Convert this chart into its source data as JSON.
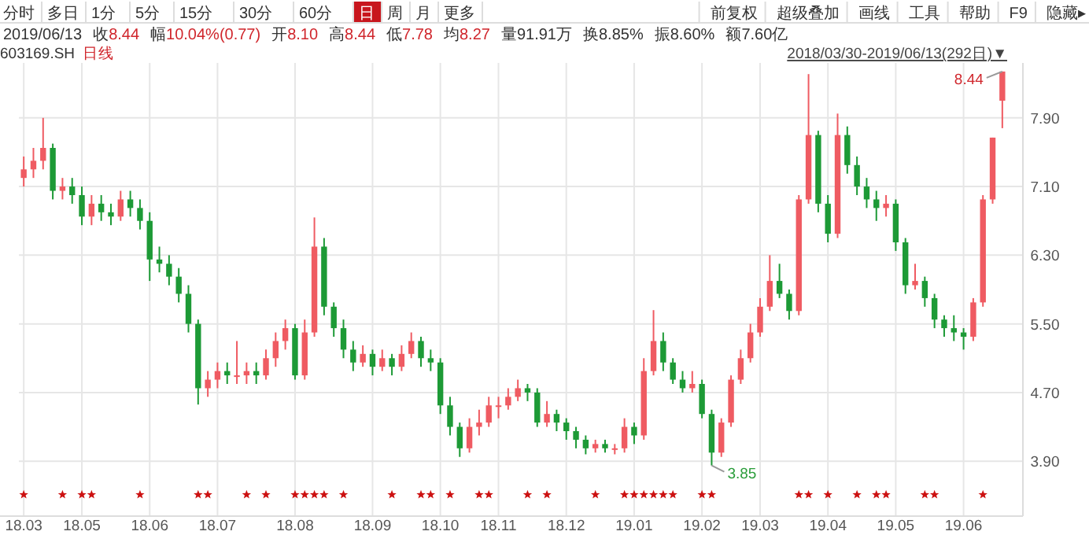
{
  "chart_data": {
    "type": "candlestick",
    "title": "603169.SH",
    "subtitle": "日线",
    "annotations": [
      "分时",
      "多日",
      "1分",
      "5分",
      "15分",
      "30分",
      "60分",
      "日",
      "周",
      "月",
      "更多",
      "前复权",
      "超级叠加",
      "画线",
      "工具",
      "帮助",
      "F9",
      "隐藏▸",
      "2019/06/13",
      "收8.44",
      "幅10.04%(0.77)",
      "开8.10",
      "高8.44",
      "低7.78",
      "均8.27",
      "量91.91万",
      "换8.85%",
      "振8.60%",
      "额7.60亿",
      "2018/03/30-2019/06/13(292日)▼",
      "8.44",
      "3.85"
    ],
    "categories": [
      "18.03",
      null,
      null,
      null,
      null,
      null,
      "18.05",
      null,
      null,
      null,
      null,
      null,
      null,
      "18.06",
      null,
      null,
      null,
      null,
      null,
      null,
      "18.07",
      null,
      null,
      null,
      null,
      null,
      null,
      null,
      "18.08",
      null,
      null,
      null,
      null,
      null,
      null,
      null,
      "18.09",
      null,
      null,
      null,
      null,
      null,
      null,
      "18.10",
      null,
      null,
      null,
      null,
      null,
      "18.11",
      null,
      null,
      null,
      null,
      null,
      null,
      "18.12",
      null,
      null,
      null,
      null,
      null,
      null,
      "19.01",
      null,
      null,
      null,
      null,
      null,
      null,
      "19.02",
      null,
      null,
      null,
      null,
      null,
      "19.03",
      null,
      null,
      null,
      null,
      null,
      null,
      "19.04",
      null,
      null,
      null,
      null,
      null,
      null,
      "19.05",
      null,
      null,
      null,
      null,
      null,
      null,
      "19.06",
      null,
      null,
      null,
      null
    ],
    "ohlc": [
      [
        7.2,
        7.45,
        7.1,
        7.3
      ],
      [
        7.3,
        7.55,
        7.2,
        7.4
      ],
      [
        7.4,
        7.9,
        7.3,
        7.55
      ],
      [
        7.55,
        7.6,
        6.95,
        7.05
      ],
      [
        7.05,
        7.2,
        6.95,
        7.1
      ],
      [
        7.1,
        7.2,
        6.9,
        7.0
      ],
      [
        7.0,
        7.1,
        6.65,
        6.75
      ],
      [
        6.75,
        7.0,
        6.65,
        6.9
      ],
      [
        6.9,
        7.0,
        6.7,
        6.8
      ],
      [
        6.8,
        6.9,
        6.65,
        6.75
      ],
      [
        6.75,
        7.05,
        6.7,
        6.95
      ],
      [
        6.95,
        7.05,
        6.75,
        6.85
      ],
      [
        6.85,
        6.95,
        6.6,
        6.7
      ],
      [
        6.7,
        6.8,
        6.0,
        6.25
      ],
      [
        6.25,
        6.4,
        6.1,
        6.2
      ],
      [
        6.2,
        6.3,
        5.95,
        6.05
      ],
      [
        6.05,
        6.15,
        5.75,
        5.85
      ],
      [
        5.85,
        5.95,
        5.4,
        5.5
      ],
      [
        5.5,
        5.55,
        4.56,
        4.75
      ],
      [
        4.75,
        4.95,
        4.65,
        4.85
      ],
      [
        4.85,
        5.05,
        4.75,
        4.95
      ],
      [
        4.95,
        5.05,
        4.8,
        4.9
      ],
      [
        4.9,
        5.3,
        4.8,
        4.9
      ],
      [
        4.9,
        5.05,
        4.8,
        4.95
      ],
      [
        4.95,
        5.05,
        4.8,
        4.9
      ],
      [
        4.9,
        5.2,
        4.85,
        5.1
      ],
      [
        5.1,
        5.4,
        5.0,
        5.3
      ],
      [
        5.3,
        5.55,
        5.2,
        5.45
      ],
      [
        5.45,
        5.5,
        4.85,
        4.9
      ],
      [
        4.9,
        5.55,
        4.85,
        5.4
      ],
      [
        5.4,
        6.74,
        5.35,
        6.4
      ],
      [
        6.4,
        6.5,
        5.6,
        5.7
      ],
      [
        5.7,
        5.75,
        5.35,
        5.45
      ],
      [
        5.45,
        5.55,
        5.1,
        5.2
      ],
      [
        5.2,
        5.3,
        4.95,
        5.05
      ],
      [
        5.05,
        5.25,
        5.0,
        5.15
      ],
      [
        5.15,
        5.2,
        4.9,
        5.0
      ],
      [
        5.0,
        5.2,
        4.95,
        5.1
      ],
      [
        5.1,
        5.15,
        4.9,
        5.0
      ],
      [
        5.0,
        5.25,
        4.95,
        5.15
      ],
      [
        5.15,
        5.4,
        5.1,
        5.3
      ],
      [
        5.3,
        5.35,
        5.0,
        5.1
      ],
      [
        5.1,
        5.2,
        4.95,
        5.05
      ],
      [
        5.05,
        5.1,
        4.45,
        4.55
      ],
      [
        4.55,
        4.65,
        4.2,
        4.3
      ],
      [
        4.3,
        4.35,
        3.95,
        4.05
      ],
      [
        4.05,
        4.4,
        4.0,
        4.3
      ],
      [
        4.3,
        4.5,
        4.2,
        4.35
      ],
      [
        4.35,
        4.65,
        4.3,
        4.55
      ],
      [
        4.55,
        4.65,
        4.4,
        4.55
      ],
      [
        4.55,
        4.75,
        4.5,
        4.65
      ],
      [
        4.65,
        4.85,
        4.6,
        4.75
      ],
      [
        4.75,
        4.8,
        4.6,
        4.7
      ],
      [
        4.7,
        4.75,
        4.3,
        4.35
      ],
      [
        4.35,
        4.6,
        4.3,
        4.45
      ],
      [
        4.45,
        4.5,
        4.25,
        4.35
      ],
      [
        4.35,
        4.4,
        4.15,
        4.25
      ],
      [
        4.25,
        4.3,
        4.05,
        4.15
      ],
      [
        4.15,
        4.2,
        3.98,
        4.05
      ],
      [
        4.05,
        4.15,
        4.0,
        4.1
      ],
      [
        4.1,
        4.15,
        4.0,
        4.05
      ],
      [
        4.05,
        4.1,
        3.98,
        4.05
      ],
      [
        4.05,
        4.4,
        4.0,
        4.3
      ],
      [
        4.3,
        4.35,
        4.1,
        4.2
      ],
      [
        4.2,
        5.1,
        4.15,
        4.95
      ],
      [
        4.95,
        5.66,
        4.9,
        5.3
      ],
      [
        5.3,
        5.4,
        4.95,
        5.05
      ],
      [
        5.05,
        5.1,
        4.8,
        4.85
      ],
      [
        4.85,
        4.95,
        4.7,
        4.75
      ],
      [
        4.75,
        4.95,
        4.7,
        4.8
      ],
      [
        4.8,
        4.85,
        4.4,
        4.45
      ],
      [
        4.45,
        4.5,
        3.85,
        4.0
      ],
      [
        4.0,
        4.4,
        3.95,
        4.35
      ],
      [
        4.35,
        4.9,
        4.3,
        4.85
      ],
      [
        4.85,
        5.2,
        4.8,
        5.1
      ],
      [
        5.1,
        5.5,
        5.05,
        5.4
      ],
      [
        5.4,
        5.8,
        5.35,
        5.7
      ],
      [
        5.7,
        6.3,
        5.65,
        6.0
      ],
      [
        6.0,
        6.2,
        5.8,
        5.85
      ],
      [
        5.85,
        5.9,
        5.55,
        5.65
      ],
      [
        5.65,
        7.0,
        5.6,
        6.95
      ],
      [
        6.95,
        8.41,
        6.9,
        7.7
      ],
      [
        7.7,
        7.75,
        6.8,
        6.9
      ],
      [
        6.9,
        7.0,
        6.45,
        6.55
      ],
      [
        6.55,
        7.95,
        6.5,
        7.7
      ],
      [
        7.7,
        7.8,
        7.25,
        7.35
      ],
      [
        7.35,
        7.45,
        7.0,
        7.1
      ],
      [
        7.1,
        7.2,
        6.85,
        6.95
      ],
      [
        6.95,
        7.05,
        6.7,
        6.85
      ],
      [
        6.85,
        7.0,
        6.75,
        6.9
      ],
      [
        6.9,
        6.95,
        6.35,
        6.45
      ],
      [
        6.45,
        6.5,
        5.85,
        5.95
      ],
      [
        5.95,
        6.2,
        5.9,
        6.0
      ],
      [
        6.0,
        6.05,
        5.7,
        5.8
      ],
      [
        5.8,
        5.85,
        5.45,
        5.55
      ],
      [
        5.55,
        5.6,
        5.35,
        5.45
      ],
      [
        5.45,
        5.6,
        5.3,
        5.4
      ],
      [
        5.4,
        5.45,
        5.2,
        5.35
      ],
      [
        5.35,
        5.8,
        5.3,
        5.75
      ],
      [
        5.75,
        7.0,
        5.7,
        6.95
      ],
      [
        6.95,
        7.67,
        6.9,
        7.67
      ],
      [
        8.1,
        8.44,
        7.78,
        8.44
      ]
    ],
    "series": [
      {
        "type": "scatter",
        "marker": "star",
        "color": "#cc1111",
        "values": [
          3.51,
          null,
          null,
          null,
          3.51,
          null,
          3.51,
          3.51,
          null,
          null,
          null,
          null,
          3.51,
          null,
          null,
          null,
          null,
          null,
          3.51,
          3.51,
          null,
          null,
          null,
          3.51,
          null,
          3.51,
          null,
          null,
          3.51,
          3.51,
          3.51,
          3.51,
          null,
          3.51,
          null,
          null,
          null,
          null,
          3.51,
          null,
          null,
          3.51,
          3.51,
          null,
          3.51,
          null,
          null,
          3.51,
          3.51,
          null,
          null,
          null,
          3.51,
          null,
          3.51,
          null,
          null,
          null,
          null,
          3.51,
          null,
          null,
          3.51,
          3.51,
          3.51,
          3.51,
          3.51,
          3.51,
          null,
          null,
          3.51,
          3.51,
          null,
          null,
          null,
          null,
          null,
          null,
          null,
          null,
          3.51,
          3.51,
          null,
          3.51,
          null,
          null,
          3.51,
          null,
          3.51,
          3.51,
          null,
          null,
          null,
          3.51,
          3.51,
          null,
          null,
          null,
          null,
          3.51,
          null,
          null
        ]
      }
    ],
    "ylim": [
      3.26,
      8.54
    ],
    "yticks": [
      {
        "value": 3.9,
        "label": "3.90"
      },
      {
        "value": 4.7,
        "label": "4.70"
      },
      {
        "value": 5.5,
        "label": "5.50"
      },
      {
        "value": 6.3,
        "label": "6.30"
      },
      {
        "value": 7.1,
        "label": "7.10"
      },
      {
        "value": 7.9,
        "label": "7.90"
      }
    ],
    "grid": true
  }
}
